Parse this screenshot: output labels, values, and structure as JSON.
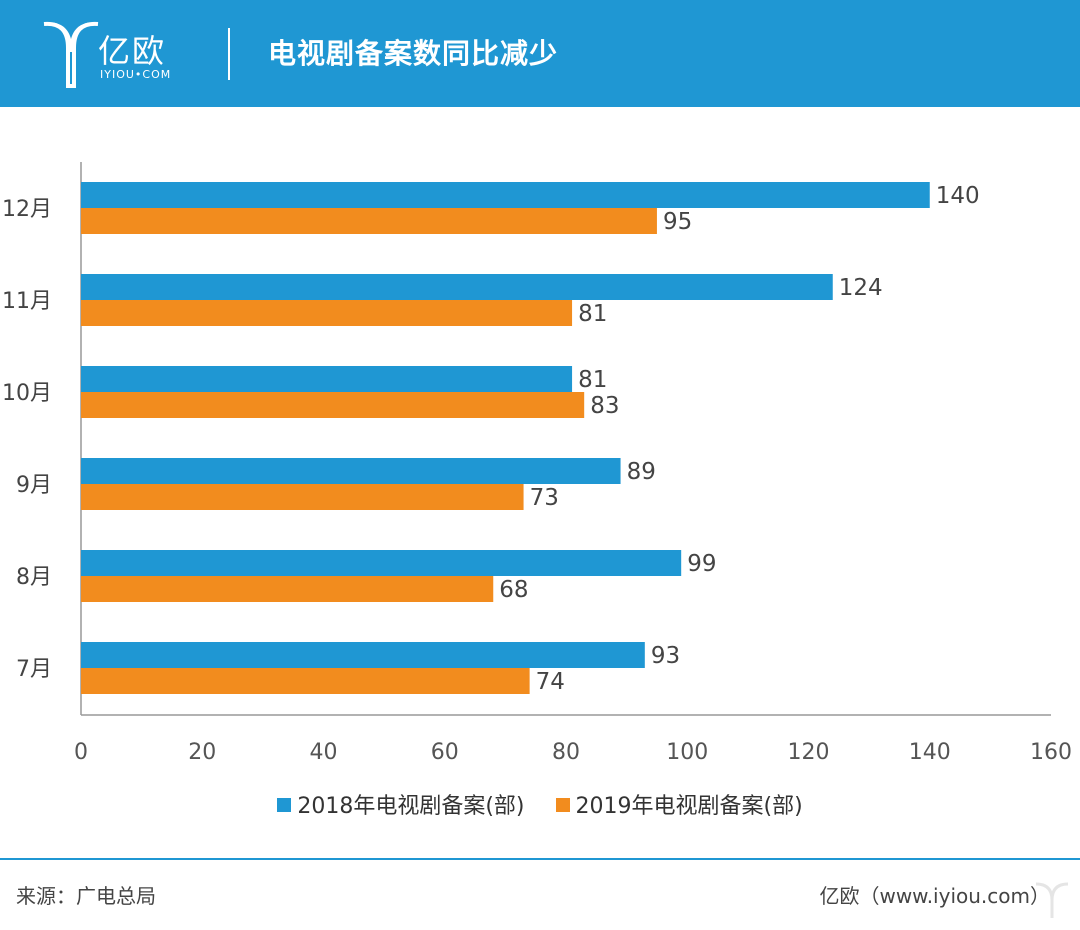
{
  "header": {
    "logo_text": "亿欧",
    "logo_sub": "IYIOU•COM",
    "title": "电视剧备案数同比减少"
  },
  "colors": {
    "header_bg": "#1f97d3",
    "series_2018": "#1f97d3",
    "series_2019": "#f28c1e"
  },
  "chart_data": {
    "type": "bar",
    "orientation": "horizontal",
    "categories": [
      "12月",
      "11月",
      "10月",
      "9月",
      "8月",
      "7月"
    ],
    "series": [
      {
        "name": "2018年电视剧备案(部)",
        "values": [
          140,
          124,
          81,
          89,
          99,
          93
        ]
      },
      {
        "name": "2019年电视剧备案(部)",
        "values": [
          95,
          81,
          83,
          73,
          68,
          74
        ]
      }
    ],
    "xlim": [
      0,
      160
    ],
    "xticks": [
      0,
      20,
      40,
      60,
      80,
      100,
      120,
      140,
      160
    ],
    "grid": false,
    "legend": "bottom-center"
  },
  "footer": {
    "source": "来源：广电总局",
    "brand": "亿欧（www.iyiou.com）"
  }
}
